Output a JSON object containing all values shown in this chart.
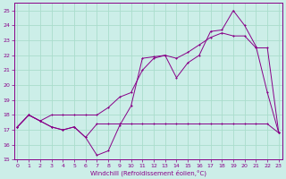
{
  "background_color": "#cceee8",
  "grid_color": "#aaddcc",
  "line_color": "#880088",
  "xlim": [
    -0.3,
    23.3
  ],
  "ylim": [
    15,
    25.5
  ],
  "xticks": [
    0,
    1,
    2,
    3,
    4,
    5,
    6,
    7,
    8,
    9,
    10,
    11,
    12,
    13,
    14,
    15,
    16,
    17,
    18,
    19,
    20,
    21,
    22,
    23
  ],
  "yticks": [
    15,
    16,
    17,
    18,
    19,
    20,
    21,
    22,
    23,
    24,
    25
  ],
  "xlabel": "Windchill (Refroidissement éolien,°C)",
  "s1_x": [
    0,
    1,
    2,
    3,
    4,
    5,
    6,
    7,
    8,
    9,
    10,
    11,
    12,
    13,
    14,
    15,
    16,
    17,
    18,
    19,
    20,
    21,
    22,
    23
  ],
  "s1_y": [
    17.2,
    18.0,
    17.6,
    17.2,
    17.0,
    17.2,
    16.5,
    17.4,
    17.4,
    17.4,
    17.4,
    17.4,
    17.4,
    17.4,
    17.4,
    17.4,
    17.4,
    17.4,
    17.4,
    17.4,
    17.4,
    17.4,
    17.4,
    16.8
  ],
  "s2_x": [
    0,
    1,
    2,
    3,
    4,
    5,
    6,
    7,
    8,
    9,
    10,
    11,
    12,
    13,
    14,
    15,
    16,
    17,
    18,
    19,
    20,
    21,
    22,
    23
  ],
  "s2_y": [
    17.2,
    18.0,
    17.6,
    17.2,
    17.0,
    17.2,
    16.5,
    15.3,
    15.6,
    17.3,
    18.6,
    21.8,
    21.9,
    22.0,
    20.5,
    21.5,
    22.0,
    23.6,
    23.7,
    25.0,
    24.0,
    22.6,
    19.5,
    16.8
  ],
  "s3_x": [
    0,
    1,
    2,
    3,
    4,
    5,
    6,
    7,
    8,
    9,
    10,
    11,
    12,
    13,
    14,
    15,
    16,
    17,
    18,
    19,
    20,
    21,
    22,
    23
  ],
  "s3_y": [
    17.2,
    18.0,
    17.6,
    18.0,
    18.0,
    18.0,
    18.0,
    18.0,
    18.5,
    19.2,
    19.5,
    21.0,
    21.8,
    22.0,
    21.8,
    22.2,
    22.7,
    23.2,
    23.5,
    23.3,
    23.3,
    22.5,
    22.5,
    16.8
  ]
}
